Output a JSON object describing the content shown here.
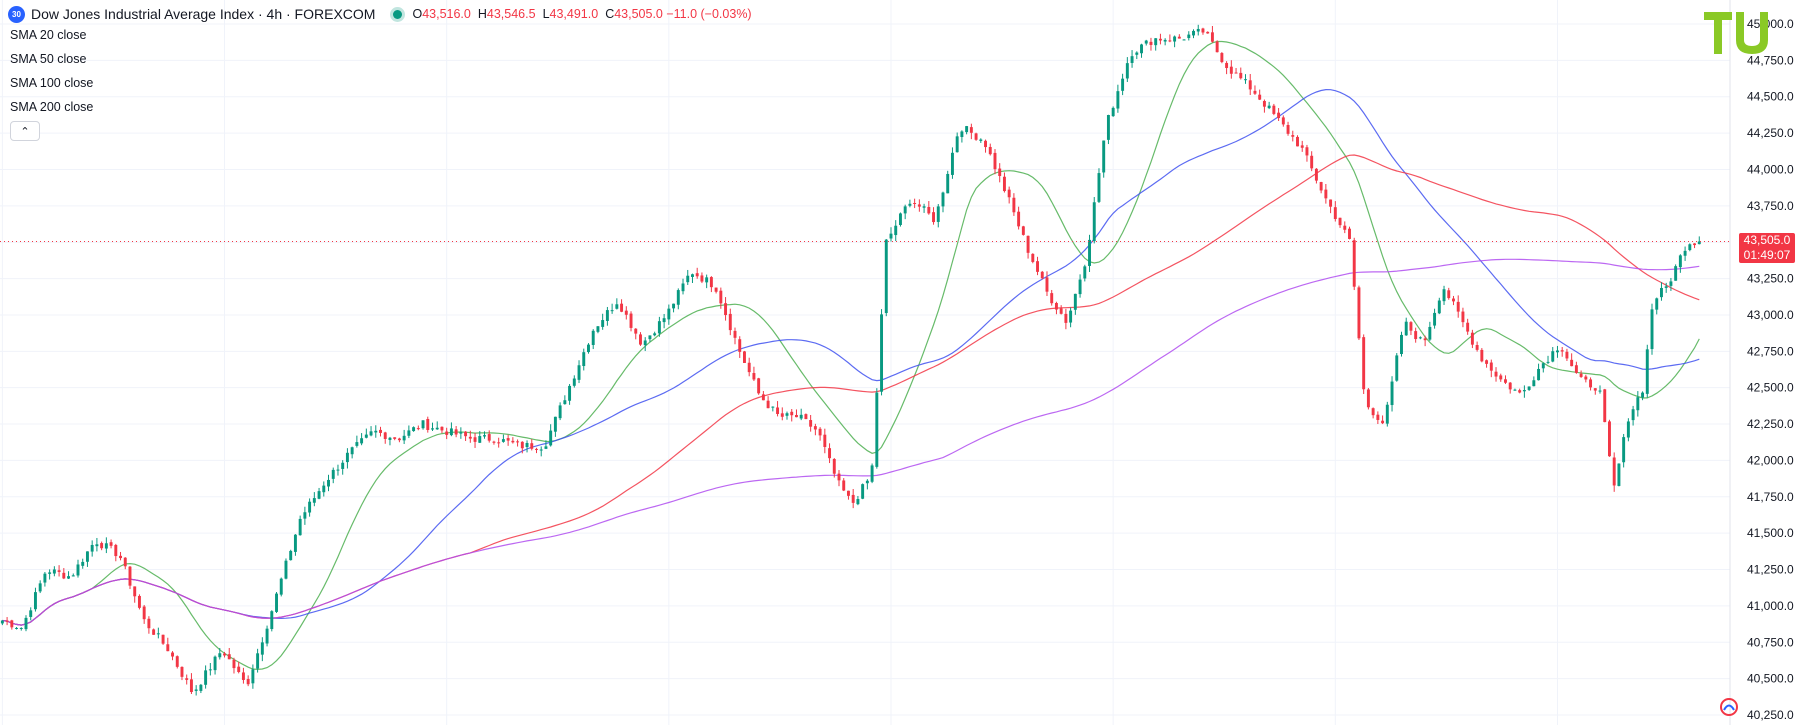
{
  "header": {
    "symbol_badge": "30",
    "title": "Dow Jones Industrial Average Index · 4h · FOREXCOM",
    "ohlc": [
      {
        "key": "O",
        "value": "43,516.0"
      },
      {
        "key": "H",
        "value": "43,546.5"
      },
      {
        "key": "L",
        "value": "43,491.0"
      },
      {
        "key": "C",
        "value": "43,505.0 −11.0 (−0.03%)"
      }
    ]
  },
  "indicators": [
    {
      "label": "SMA 20 close",
      "value": "",
      "color": "#4caf50"
    },
    {
      "label": "SMA 50 close",
      "value": "",
      "color": "#3f51f0"
    },
    {
      "label": "SMA 100 close",
      "value": "",
      "color": "#f23645"
    },
    {
      "label": "SMA 200 close",
      "value": "",
      "color": "#b04ef0"
    }
  ],
  "collapse_icon": "chevron-up-icon",
  "logo_text": "TU",
  "last_price": {
    "price": "43,505.0",
    "countdown": "01:49:07"
  },
  "colors": {
    "up": "#089981",
    "down": "#f23645",
    "grid": "#f0f3fa",
    "axis_text": "#131722"
  },
  "chart_data": {
    "type": "candlestick",
    "title": "Dow Jones Industrial Average Index · 4h · FOREXCOM",
    "xlabel": "",
    "ylabel": "",
    "ylim": [
      40250,
      45000
    ],
    "y_ticks": [
      40250,
      40500,
      40750,
      41000,
      41250,
      41500,
      41750,
      42000,
      42250,
      42500,
      42750,
      43000,
      43250,
      43500,
      43750,
      44000,
      44250,
      44500,
      44750,
      45000
    ],
    "y_tick_labels": [
      "40,250.0",
      "40,500.0",
      "40,750.0",
      "41,000.0",
      "41,250.0",
      "41,500.0",
      "41,750.0",
      "42,000.0",
      "42,250.0",
      "42,500.0",
      "42,750.0",
      "43,000.0",
      "43,250.0",
      "43,500.0",
      "43,750.0",
      "44,000.0",
      "44,250.0",
      "44,500.0",
      "44,750.0",
      "45,000.0"
    ],
    "grid": true,
    "last_close": 43505,
    "candle_count": 360,
    "close_anchors": [
      [
        0,
        40900
      ],
      [
        8,
        40850
      ],
      [
        18,
        41250
      ],
      [
        28,
        41200
      ],
      [
        38,
        41450
      ],
      [
        48,
        41350
      ],
      [
        58,
        40900
      ],
      [
        68,
        40700
      ],
      [
        78,
        40400
      ],
      [
        90,
        40700
      ],
      [
        100,
        40450
      ],
      [
        110,
        40950
      ],
      [
        122,
        41600
      ],
      [
        132,
        41850
      ],
      [
        142,
        42050
      ],
      [
        152,
        42200
      ],
      [
        162,
        42150
      ],
      [
        172,
        42250
      ],
      [
        182,
        42200
      ],
      [
        192,
        42150
      ],
      [
        202,
        42150
      ],
      [
        212,
        42100
      ],
      [
        222,
        42100
      ],
      [
        232,
        42500
      ],
      [
        242,
        42900
      ],
      [
        252,
        43100
      ],
      [
        262,
        42800
      ],
      [
        272,
        43000
      ],
      [
        282,
        43300
      ],
      [
        292,
        43200
      ],
      [
        302,
        42750
      ],
      [
        310,
        42450
      ],
      [
        318,
        42300
      ],
      [
        326,
        42300
      ],
      [
        334,
        42200
      ],
      [
        342,
        41850
      ],
      [
        348,
        41700
      ],
      [
        356,
        41900
      ],
      [
        362,
        43500
      ],
      [
        372,
        43800
      ],
      [
        382,
        43650
      ],
      [
        392,
        44300
      ],
      [
        402,
        44200
      ],
      [
        412,
        43800
      ],
      [
        420,
        43450
      ],
      [
        428,
        43150
      ],
      [
        436,
        42950
      ],
      [
        444,
        43400
      ],
      [
        452,
        44300
      ],
      [
        462,
        44800
      ],
      [
        472,
        44900
      ],
      [
        482,
        44900
      ],
      [
        492,
        44950
      ],
      [
        502,
        44700
      ],
      [
        512,
        44550
      ],
      [
        522,
        44350
      ],
      [
        532,
        44150
      ],
      [
        542,
        43800
      ],
      [
        552,
        43500
      ],
      [
        558,
        42400
      ],
      [
        566,
        42250
      ],
      [
        574,
        42950
      ],
      [
        582,
        42800
      ],
      [
        590,
        43200
      ],
      [
        598,
        42950
      ],
      [
        606,
        42700
      ],
      [
        614,
        42550
      ],
      [
        622,
        42450
      ],
      [
        630,
        42650
      ],
      [
        638,
        42800
      ],
      [
        646,
        42550
      ],
      [
        654,
        42500
      ],
      [
        660,
        41800
      ],
      [
        666,
        42300
      ],
      [
        672,
        42500
      ],
      [
        676,
        43100
      ],
      [
        682,
        43200
      ],
      [
        690,
        43500
      ],
      [
        695,
        43505
      ]
    ],
    "series": [
      {
        "name": "SMA 20 close",
        "period": 20,
        "color": "#4caf50"
      },
      {
        "name": "SMA 50 close",
        "period": 50,
        "color": "#3f51f0"
      },
      {
        "name": "SMA 100 close",
        "period": 100,
        "color": "#f23645"
      },
      {
        "name": "SMA 200 close",
        "period": 200,
        "color": "#b04ef0"
      }
    ]
  }
}
